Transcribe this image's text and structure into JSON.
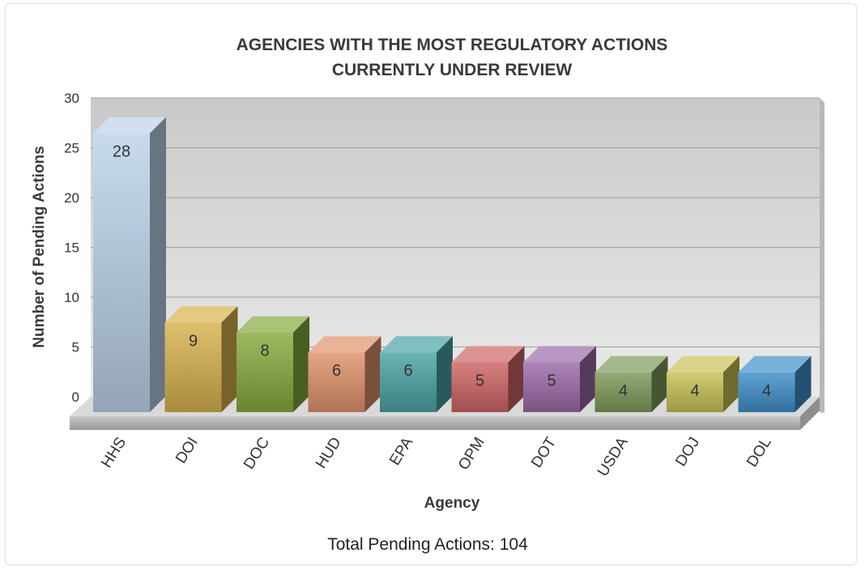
{
  "chart_data": {
    "type": "bar",
    "title": [
      "AGENCIES WITH THE MOST REGULATORY ACTIONS",
      "CURRENTLY UNDER REVIEW"
    ],
    "xlabel": "Agency",
    "ylabel": "Number of Pending Actions",
    "ylim": [
      0,
      30
    ],
    "yticks": [
      0,
      5,
      10,
      15,
      20,
      25,
      30
    ],
    "grid": true,
    "categories": [
      "HHS",
      "DOI",
      "DOC",
      "HUD",
      "EPA",
      "OPM",
      "DOT",
      "USDA",
      "DOJ",
      "DOL"
    ],
    "values": [
      28,
      9,
      8,
      6,
      6,
      5,
      5,
      4,
      4,
      4
    ],
    "colors": [
      "#bcd3ea",
      "#d8b24e",
      "#86ab3d",
      "#e0926a",
      "#4aa3a6",
      "#cf6464",
      "#9c6aa8",
      "#7f9a5a",
      "#c8c256",
      "#3f8fcb"
    ]
  },
  "footer": {
    "label": "Total Pending Actions: 104"
  }
}
